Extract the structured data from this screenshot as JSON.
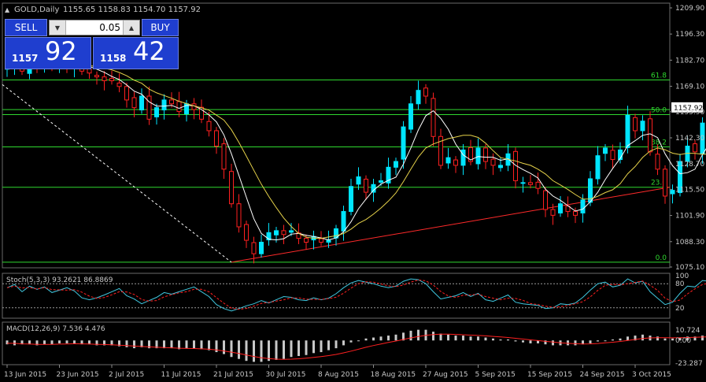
{
  "header": {
    "symbol": "GOLD,Daily",
    "ohlc": "1155.65 1158.83 1154.70 1157.92"
  },
  "trade_panel": {
    "sell_label": "SELL",
    "buy_label": "BUY",
    "lot": "0.05",
    "sell_small": "1157",
    "sell_big": "92",
    "buy_small": "1158",
    "buy_big": "42"
  },
  "colors": {
    "bull": "#00e5ff",
    "bear": "#ff2020",
    "fib": "#2fd82f",
    "trend": "#ff2a2a",
    "ma_fast": "#ffffff",
    "ma_slow": "#e6d24a",
    "macd_hist": "#c8c8c8",
    "macd_signal": "#ff2020",
    "stoch_main": "#40c8e0",
    "stoch_signal": "#ff2020",
    "axis_text": "#c8c8c8"
  },
  "chart_data": {
    "type": "candlestick",
    "price_axis": {
      "ticks": [
        1209.9,
        1196.3,
        1182.7,
        1169.1,
        1155.9,
        1142.3,
        1128.7,
        1115.5,
        1101.9,
        1088.3,
        1075.1
      ],
      "tick_labels": [
        "1209.90",
        "1196.30",
        "1182.70",
        "1169.10",
        "1155.90",
        "1142.30",
        "1128.70",
        "1115.50",
        "1101.90",
        "1088.30",
        "1075.10"
      ],
      "current": 1157.92,
      "current_label": "1157.92"
    },
    "fib_levels": [
      {
        "label": "61.8",
        "price": 1172.4
      },
      {
        "label": "50.0",
        "price": 1154.4
      },
      {
        "label": "38.2",
        "price": 1137.6
      },
      {
        "label": "23.6",
        "price": 1116.6
      },
      {
        "label": "0.0",
        "price": 1077.6
      }
    ],
    "top_line_price": 1157.0,
    "date_labels": [
      {
        "label": "13 Jun 2015",
        "index": 0
      },
      {
        "label": "23 Jun 2015",
        "index": 7
      },
      {
        "label": "2 Jul 2015",
        "index": 14
      },
      {
        "label": "11 Jul 2015",
        "index": 21
      },
      {
        "label": "21 Jul 2015",
        "index": 28
      },
      {
        "label": "30 Jul 2015",
        "index": 35
      },
      {
        "label": "8 Aug 2015",
        "index": 42
      },
      {
        "label": "18 Aug 2015",
        "index": 49
      },
      {
        "label": "27 Aug 2015",
        "index": 56
      },
      {
        "label": "5 Sep 2015",
        "index": 63
      },
      {
        "label": "15 Sep 2015",
        "index": 70
      },
      {
        "label": "24 Sep 2015",
        "index": 77
      },
      {
        "label": "3 Oct 2015",
        "index": 84
      }
    ],
    "closes": [
      1180,
      1184,
      1177,
      1182,
      1180,
      1183,
      1179,
      1181,
      1180,
      1183,
      1177,
      1176,
      1174,
      1172,
      1172,
      1169,
      1162,
      1158,
      1164,
      1152,
      1158,
      1162,
      1160,
      1156,
      1160,
      1157,
      1152,
      1146,
      1138,
      1126,
      1108,
      1096,
      1089,
      1082,
      1088,
      1093,
      1094,
      1092,
      1094,
      1090,
      1088,
      1091,
      1088,
      1089,
      1095,
      1104,
      1117,
      1122,
      1114,
      1118,
      1120,
      1127,
      1130,
      1148,
      1160,
      1167,
      1164,
      1143,
      1128,
      1132,
      1128,
      1136,
      1130,
      1137,
      1130,
      1128,
      1128,
      1134,
      1120,
      1119,
      1118,
      1116,
      1105,
      1102,
      1108,
      1104,
      1102,
      1110,
      1121,
      1133,
      1137,
      1131,
      1136,
      1154,
      1146,
      1151,
      1135,
      1126,
      1112,
      1115,
      1130,
      1138,
      1135,
      1150,
      1146,
      1143,
      1155,
      1158
    ],
    "stoch": {
      "title": "Stoch(5,3,3) 93.2621 86.8869",
      "levels": [
        100,
        80,
        20
      ],
      "level_labels": [
        "100",
        "80",
        "20"
      ],
      "main": [
        70,
        78,
        60,
        74,
        66,
        72,
        58,
        64,
        70,
        62,
        45,
        40,
        45,
        52,
        60,
        68,
        50,
        42,
        30,
        38,
        46,
        58,
        54,
        60,
        66,
        72,
        60,
        48,
        28,
        18,
        12,
        18,
        25,
        30,
        38,
        32,
        40,
        48,
        46,
        40,
        38,
        45,
        40,
        44,
        55,
        70,
        82,
        88,
        84,
        80,
        74,
        70,
        74,
        86,
        92,
        90,
        80,
        60,
        42,
        46,
        50,
        58,
        48,
        56,
        40,
        36,
        44,
        52,
        34,
        30,
        28,
        26,
        18,
        20,
        30,
        28,
        32,
        46,
        64,
        80,
        84,
        72,
        76,
        92,
        82,
        86,
        60,
        44,
        28,
        34,
        56,
        74,
        72,
        88,
        86,
        84,
        92,
        93
      ]
    },
    "macd": {
      "title": "MACD(12,26,9) 7.536 4.476",
      "tick_labels": [
        "10.724",
        "0.00",
        "-23.287"
      ],
      "tick_values": [
        10.724,
        0,
        -23.287
      ],
      "hist": [
        -4,
        -5,
        -4,
        -4,
        -5,
        -4,
        -4,
        -3,
        -3,
        -3,
        -4,
        -4,
        -5,
        -5,
        -5,
        -6,
        -7,
        -8,
        -7,
        -8,
        -8,
        -8,
        -8,
        -9,
        -8,
        -8,
        -9,
        -10,
        -12,
        -14,
        -17,
        -19,
        -21,
        -22,
        -22,
        -21,
        -20,
        -19,
        -17,
        -16,
        -15,
        -13,
        -12,
        -10,
        -8,
        -5,
        -2,
        0,
        2,
        3,
        4,
        5,
        6,
        8,
        10,
        11,
        11,
        9,
        7,
        6,
        5,
        5,
        4,
        4,
        3,
        2,
        1,
        1,
        -1,
        -2,
        -3,
        -3,
        -4,
        -5,
        -5,
        -5,
        -5,
        -4,
        -3,
        -1,
        0,
        1,
        2,
        4,
        5,
        6,
        5,
        4,
        2,
        2,
        3,
        4,
        4,
        5,
        6,
        6,
        7,
        7.5
      ],
      "signal": [
        -3,
        -3,
        -3.5,
        -3.7,
        -4,
        -4,
        -4,
        -3.8,
        -3.6,
        -3.4,
        -3.5,
        -3.7,
        -4,
        -4.2,
        -4.5,
        -4.8,
        -5.2,
        -5.8,
        -6.2,
        -6.6,
        -7,
        -7.3,
        -7.6,
        -8,
        -8.2,
        -8.3,
        -8.6,
        -9,
        -9.8,
        -10.8,
        -12,
        -13.4,
        -15,
        -16.5,
        -17.8,
        -18.7,
        -19.2,
        -19.4,
        -19.2,
        -18.8,
        -18.2,
        -17.4,
        -16.6,
        -15.6,
        -14.4,
        -12.8,
        -11,
        -9,
        -7,
        -5.2,
        -3.6,
        -2,
        -0.6,
        1,
        2.6,
        4,
        5.2,
        6,
        6.4,
        6.4,
        6.2,
        5.9,
        5.5,
        5.1,
        4.7,
        4.2,
        3.6,
        3,
        2.2,
        1.4,
        0.6,
        -0.1,
        -0.9,
        -1.7,
        -2.4,
        -3,
        -3.4,
        -3.6,
        -3.5,
        -3.1,
        -2.5,
        -1.8,
        -1,
        0,
        1,
        2,
        2.6,
        2.9,
        2.8,
        2.7,
        2.8,
        3,
        3.2,
        3.5,
        3.8,
        4,
        4.3,
        4.5
      ]
    }
  }
}
